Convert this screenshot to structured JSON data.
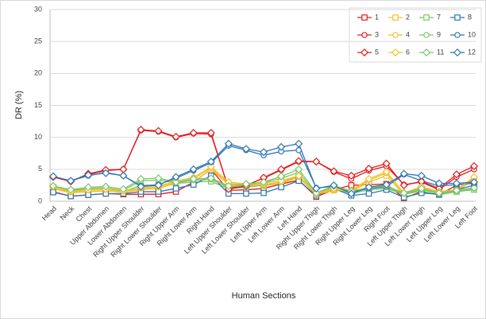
{
  "chart_data": {
    "type": "line",
    "x_label": "Human Sections",
    "y_label": "DR (%)",
    "categories": [
      "Head",
      "Neck",
      "Chest",
      "Upper Abdomen",
      "Lower Abdomen",
      "Right Upper Shoulder",
      "Right Lower Shoulder",
      "Right Upper Arm",
      "Right Lower Arm",
      "Right Hand",
      "Left Upper Shoulder",
      "Left Lower Shoulder",
      "Left Upper Arm",
      "Left Lower Arm",
      "Left Hand",
      "Right Upper Thigh",
      "Right Lower Thigh",
      "Right Upper Leg",
      "Right Lower Leg",
      "Right Foot",
      "Left Upper Thigh",
      "Left Lower Thigh",
      "Left Upper Leg",
      "Left Lower Leg",
      "Left Foot"
    ],
    "ylim": [
      0,
      30
    ],
    "yticks": [
      0,
      5,
      10,
      15,
      20,
      25,
      30
    ],
    "grid": true,
    "series": [
      {
        "name": "1",
        "color": "#e31a1c",
        "marker": "square",
        "values": [
          1.5,
          0.8,
          1.0,
          1.2,
          1.1,
          1.1,
          1.1,
          1.5,
          3.0,
          5.0,
          1.7,
          1.8,
          2.0,
          2.7,
          3.3,
          0.7,
          1.8,
          2.5,
          2.6,
          2.7,
          0.5,
          1.5,
          1.0,
          2.5,
          3.0
        ]
      },
      {
        "name": "2",
        "color": "#f2c12e",
        "marker": "square",
        "values": [
          2.0,
          1.3,
          1.5,
          1.6,
          1.4,
          1.8,
          2.0,
          2.8,
          3.0,
          5.0,
          2.6,
          2.5,
          2.4,
          2.8,
          3.7,
          1.0,
          1.7,
          1.5,
          3.0,
          4.0,
          1.0,
          2.0,
          1.3,
          1.5,
          3.5
        ]
      },
      {
        "name": "7",
        "color": "#7cc668",
        "marker": "square",
        "values": [
          2.2,
          1.6,
          1.8,
          1.9,
          1.5,
          2.5,
          2.5,
          2.8,
          3.0,
          3.1,
          2.0,
          2.2,
          2.5,
          3.0,
          4.0,
          1.0,
          2.0,
          1.2,
          1.8,
          2.0,
          1.1,
          1.6,
          1.0,
          1.5,
          1.8
        ]
      },
      {
        "name": "8",
        "color": "#2e75b6",
        "marker": "square",
        "values": [
          1.4,
          0.8,
          1.0,
          1.2,
          1.2,
          1.5,
          1.5,
          2.0,
          2.6,
          4.0,
          1.2,
          1.2,
          1.3,
          2.2,
          3.2,
          0.9,
          2.0,
          0.9,
          1.2,
          1.8,
          0.6,
          1.3,
          1.1,
          1.8,
          2.5
        ]
      },
      {
        "name": "3",
        "color": "#e31a1c",
        "marker": "circle",
        "values": [
          3.8,
          3.1,
          4.2,
          4.8,
          5.0,
          11.1,
          10.9,
          10.0,
          10.6,
          10.5,
          2.0,
          2.5,
          3.6,
          4.9,
          6.2,
          6.2,
          4.6,
          3.5,
          4.8,
          5.5,
          2.6,
          3.0,
          1.8,
          3.8,
          5.0
        ]
      },
      {
        "name": "4",
        "color": "#f2c12e",
        "marker": "circle",
        "values": [
          2.2,
          1.4,
          1.7,
          1.8,
          1.5,
          2.0,
          2.2,
          3.0,
          3.5,
          5.2,
          2.8,
          2.6,
          2.6,
          3.0,
          3.8,
          1.1,
          1.8,
          1.6,
          3.3,
          4.4,
          1.2,
          2.2,
          1.4,
          1.7,
          3.6
        ]
      },
      {
        "name": "9",
        "color": "#7cc668",
        "marker": "circle",
        "values": [
          2.3,
          1.7,
          2.0,
          2.1,
          1.7,
          3.2,
          3.3,
          2.9,
          3.3,
          3.4,
          2.2,
          2.5,
          2.9,
          3.6,
          4.5,
          1.2,
          2.2,
          1.4,
          2.0,
          2.2,
          1.2,
          1.8,
          1.2,
          1.6,
          2.0
        ]
      },
      {
        "name": "10",
        "color": "#2e75b6",
        "marker": "circle",
        "values": [
          3.8,
          3.2,
          4.0,
          4.5,
          4.0,
          2.4,
          2.6,
          3.6,
          4.8,
          6.0,
          8.7,
          8.0,
          7.2,
          7.8,
          8.0,
          2.1,
          2.3,
          1.5,
          2.0,
          2.3,
          4.2,
          3.2,
          2.4,
          2.6,
          2.8
        ]
      },
      {
        "name": "5",
        "color": "#e31a1c",
        "marker": "diamond",
        "values": [
          3.8,
          3.1,
          4.3,
          4.9,
          5.0,
          11.2,
          11.0,
          10.1,
          10.7,
          10.7,
          1.9,
          2.4,
          3.7,
          5.0,
          6.3,
          6.2,
          4.7,
          4.0,
          5.1,
          5.9,
          2.5,
          3.1,
          2.0,
          4.2,
          5.5
        ]
      },
      {
        "name": "6",
        "color": "#f2c12e",
        "marker": "diamond",
        "values": [
          2.3,
          1.5,
          1.8,
          1.9,
          1.6,
          2.1,
          2.3,
          3.2,
          3.7,
          5.4,
          3.0,
          2.7,
          2.8,
          3.2,
          4.0,
          1.2,
          2.0,
          1.7,
          3.5,
          4.6,
          1.3,
          2.3,
          1.5,
          1.8,
          3.8
        ]
      },
      {
        "name": "11",
        "color": "#7cc668",
        "marker": "diamond",
        "values": [
          2.4,
          1.8,
          2.2,
          2.3,
          1.9,
          3.5,
          3.6,
          3.0,
          3.5,
          3.6,
          2.4,
          2.7,
          3.0,
          3.9,
          5.0,
          1.3,
          2.4,
          1.6,
          2.1,
          2.4,
          1.3,
          2.0,
          1.3,
          1.7,
          2.1
        ]
      },
      {
        "name": "12",
        "color": "#2e75b6",
        "marker": "diamond",
        "values": [
          3.9,
          3.2,
          4.1,
          4.4,
          4.0,
          2.3,
          2.5,
          3.8,
          5.0,
          6.2,
          9.0,
          8.2,
          7.7,
          8.5,
          9.0,
          2.0,
          2.5,
          1.2,
          2.2,
          2.6,
          4.3,
          4.0,
          2.8,
          2.8,
          3.0
        ]
      }
    ]
  }
}
